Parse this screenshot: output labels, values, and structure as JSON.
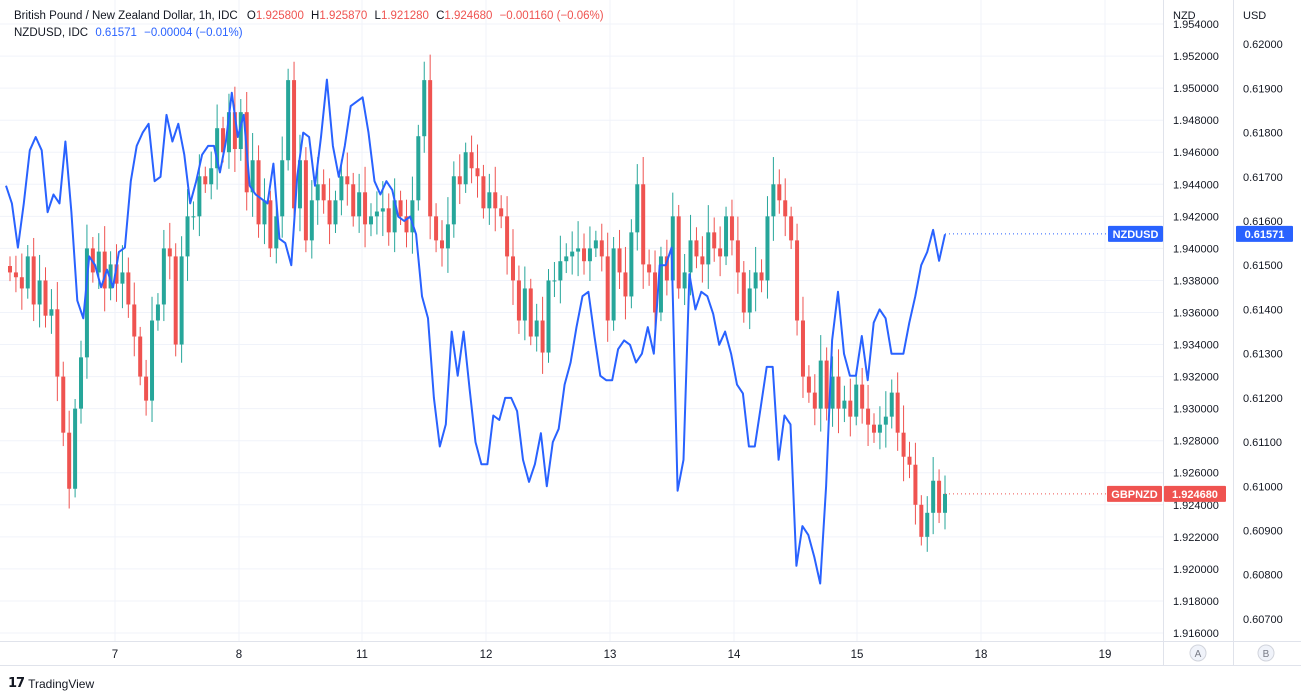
{
  "header": {
    "main_symbol": "British Pound / New Zealand Dollar, 1h, IDC",
    "o_label": "O",
    "o_value": "1.925800",
    "h_label": "H",
    "h_value": "1.925870",
    "l_label": "L",
    "l_value": "1.921280",
    "c_label": "C",
    "c_value": "1.924680",
    "change": "−0.001160 (−0.06%)",
    "overlay_symbol": "NZDUSD, IDC",
    "overlay_value": "0.61571",
    "overlay_change": "−0.00004 (−0.01%)"
  },
  "axes": {
    "left_scale_title": "NZD",
    "right_scale_title": "USD",
    "scale_a_button": "A",
    "scale_b_button": "B"
  },
  "branding": {
    "logo_text": "TradingView"
  },
  "colors": {
    "up": "#26a69a",
    "down": "#ef5350",
    "overlay": "#2962ff",
    "grid": "#f0f3fa",
    "text": "#131722"
  },
  "chart_data": {
    "type": "line",
    "title": "British Pound / New Zealand Dollar, 1h, IDC",
    "x_ticks": [
      "7",
      "8",
      "11",
      "12",
      "13",
      "14",
      "15",
      "18",
      "19"
    ],
    "y_left": {
      "label": "NZD",
      "ticks": [
        "1.954000",
        "1.952000",
        "1.950000",
        "1.948000",
        "1.946000",
        "1.944000",
        "1.942000",
        "1.940000",
        "1.938000",
        "1.936000",
        "1.934000",
        "1.932000",
        "1.930000",
        "1.928000",
        "1.926000",
        "1.924000",
        "1.922000",
        "1.920000",
        "1.918000",
        "1.916000"
      ],
      "range": [
        1.9155,
        1.9555
      ]
    },
    "y_right": {
      "label": "USD",
      "ticks": [
        "0.62000",
        "0.61900",
        "0.61800",
        "0.61700",
        "0.61600",
        "0.61500",
        "0.61400",
        "0.61300",
        "0.61200",
        "0.61100",
        "0.61000",
        "0.60900",
        "0.60800",
        "0.60700"
      ],
      "range": [
        0.6065,
        0.621
      ]
    },
    "series": [
      {
        "name": "GBPNZD",
        "kind": "candlestick",
        "last_value": "1.924680",
        "close": [
          1.9385,
          1.9382,
          1.9375,
          1.9395,
          1.9365,
          1.938,
          1.9358,
          1.9362,
          1.932,
          1.9285,
          1.925,
          1.93,
          1.9332,
          1.94,
          1.9385,
          1.9398,
          1.9375,
          1.939,
          1.9378,
          1.9385,
          1.9365,
          1.9345,
          1.932,
          1.9305,
          1.9355,
          1.9365,
          1.94,
          1.9395,
          1.934,
          1.9395,
          1.942,
          1.942,
          1.9445,
          1.944,
          1.945,
          1.9475,
          1.946,
          1.9485,
          1.9462,
          1.9485,
          1.9435,
          1.9455,
          1.9415,
          1.943,
          1.94,
          1.942,
          1.9455,
          1.9505,
          1.9425,
          1.9455,
          1.9405,
          1.943,
          1.944,
          1.943,
          1.9415,
          1.943,
          1.9445,
          1.944,
          1.942,
          1.9435,
          1.9415,
          1.942,
          1.9423,
          1.9425,
          1.941,
          1.943,
          1.942,
          1.941,
          1.943,
          1.947,
          1.9505,
          1.942,
          1.9405,
          1.94,
          1.9415,
          1.9445,
          1.944,
          1.946,
          1.945,
          1.9445,
          1.9425,
          1.9435,
          1.9425,
          1.942,
          1.9395,
          1.938,
          1.9355,
          1.9375,
          1.9345,
          1.9355,
          1.9335,
          1.938,
          1.938,
          1.9392,
          1.9395,
          1.9398,
          1.94,
          1.9392,
          1.94,
          1.9405,
          1.9395,
          1.9355,
          1.94,
          1.9385,
          1.937,
          1.941,
          1.944,
          1.939,
          1.9385,
          1.936,
          1.9395,
          1.938,
          1.942,
          1.9375,
          1.9385,
          1.9405,
          1.9395,
          1.939,
          1.941,
          1.94,
          1.9395,
          1.942,
          1.9405,
          1.9385,
          1.936,
          1.9375,
          1.9385,
          1.938,
          1.942,
          1.944,
          1.943,
          1.942,
          1.9405,
          1.9355,
          1.932,
          1.931,
          1.93,
          1.933,
          1.93,
          1.932,
          1.93,
          1.9305,
          1.9295,
          1.9315,
          1.93,
          1.929,
          1.9285,
          1.929,
          1.9295,
          1.931,
          1.9285,
          1.927,
          1.9265,
          1.924,
          1.922,
          1.9235,
          1.9255,
          1.9235,
          1.92468
        ]
      },
      {
        "name": "NZDUSD",
        "kind": "line",
        "last_value": "0.61571",
        "values": [
          0.6168,
          0.6164,
          0.6154,
          0.6164,
          0.6176,
          0.6179,
          0.6176,
          0.6162,
          0.6166,
          0.6164,
          0.6178,
          0.6162,
          0.6142,
          0.6138,
          0.6152,
          0.615,
          0.6145,
          0.6149,
          0.6145,
          0.6153,
          0.6154,
          0.6169,
          0.6177,
          0.618,
          0.6182,
          0.6169,
          0.617,
          0.6184,
          0.6178,
          0.6182,
          0.6175,
          0.6164,
          0.6169,
          0.6175,
          0.6177,
          0.6177,
          0.6171,
          0.6178,
          0.6189,
          0.6179,
          0.6184,
          0.6168,
          0.6166,
          0.6165,
          0.6164,
          0.6173,
          0.6156,
          0.6155,
          0.615,
          0.617,
          0.618,
          0.6179,
          0.6168,
          0.6179,
          0.6192,
          0.6177,
          0.617,
          0.6177,
          0.6186,
          0.6187,
          0.6188,
          0.618,
          0.6169,
          0.6166,
          0.6169,
          0.6167,
          0.6161,
          0.616,
          0.6161,
          0.6157,
          0.6143,
          0.6138,
          0.612,
          0.6109,
          0.6114,
          0.6135,
          0.6125,
          0.6135,
          0.6122,
          0.611,
          0.6105,
          0.6105,
          0.6116,
          0.6115,
          0.612,
          0.612,
          0.6117,
          0.6106,
          0.6101,
          0.6105,
          0.6112,
          0.61,
          0.611,
          0.6113,
          0.6123,
          0.6128,
          0.6136,
          0.6143,
          0.6144,
          0.6134,
          0.6125,
          0.6124,
          0.6124,
          0.6131,
          0.6133,
          0.6132,
          0.6128,
          0.613,
          0.6136,
          0.613,
          0.615,
          0.615,
          0.6154,
          0.6099,
          0.6106,
          0.6148,
          0.614,
          0.6144,
          0.6143,
          0.6139,
          0.6132,
          0.6135,
          0.613,
          0.6123,
          0.6121,
          0.6109,
          0.6109,
          0.6118,
          0.6127,
          0.6127,
          0.6106,
          0.6116,
          0.6114,
          0.6082,
          0.6091,
          0.6089,
          0.6084,
          0.6078,
          0.61,
          0.6133,
          0.6144,
          0.613,
          0.6125,
          0.6125,
          0.6134,
          0.6124,
          0.6137,
          0.614,
          0.6138,
          0.613,
          0.613,
          0.613,
          0.6137,
          0.6143,
          0.615,
          0.6153,
          0.6158,
          0.6151,
          0.6157
        ]
      }
    ]
  }
}
